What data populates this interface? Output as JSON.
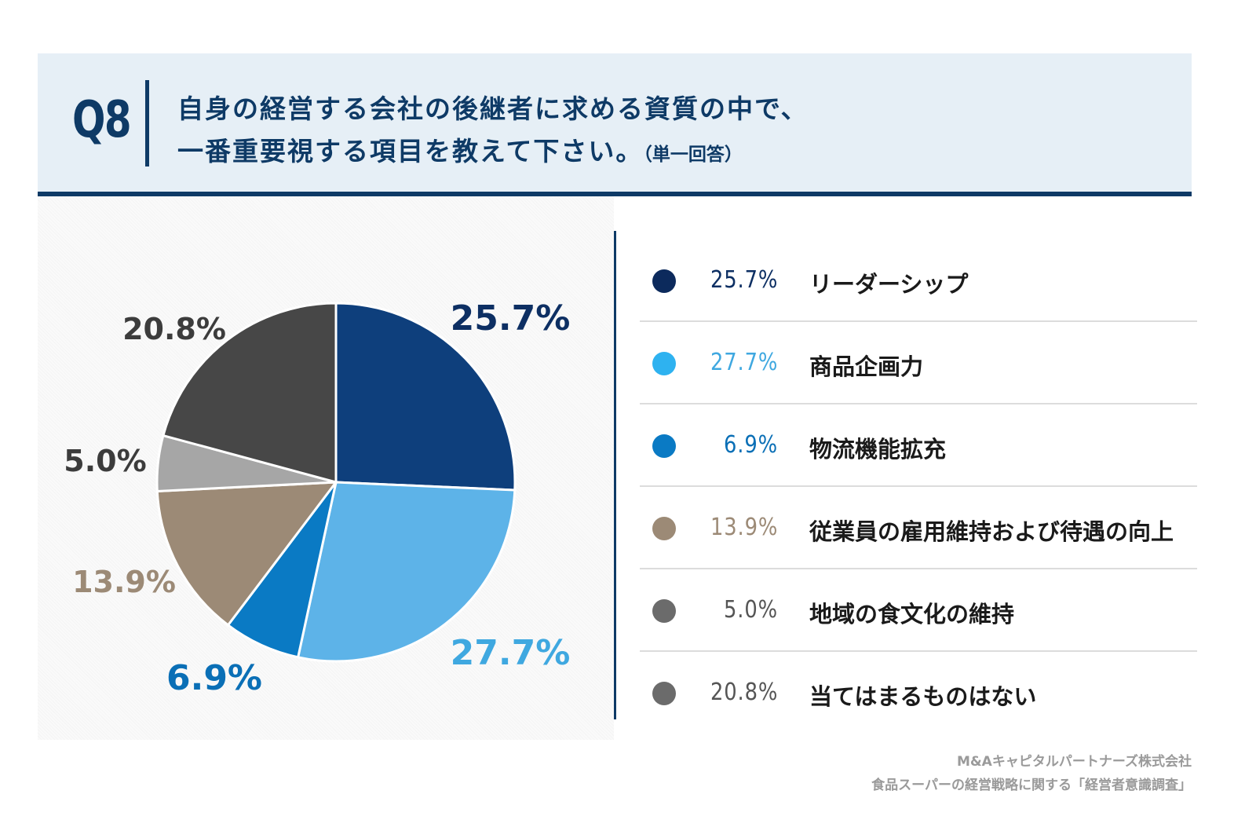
{
  "header": {
    "qno": "Q8",
    "title_line1": "自身の経営する会社の後継者に求める資質の中で、",
    "title_line2": "一番重要視する項目を教えて下さい。",
    "title_note": "（単一回答）"
  },
  "chart_data": {
    "type": "pie",
    "title": "",
    "start_angle_deg": 0,
    "direction": "clockwise",
    "slices": [
      {
        "label": "リーダーシップ",
        "value": 25.7,
        "display": "25.7%",
        "color": "#0e3f7c",
        "legend_dot": "#0c2a5c",
        "label_color": "#0d2f63"
      },
      {
        "label": "商品企画力",
        "value": 27.7,
        "display": "27.7%",
        "color": "#5db3e8",
        "legend_dot": "#2eb2f0",
        "label_color": "#3fa8e0"
      },
      {
        "label": "物流機能拡充",
        "value": 6.9,
        "display": "6.9%",
        "color": "#0a7ac4",
        "legend_dot": "#0a7ac4",
        "label_color": "#0a6fb6"
      },
      {
        "label": "従業員の雇用維持および待遇の向上",
        "value": 13.9,
        "display": "13.9%",
        "color": "#9c8a76",
        "legend_dot": "#9c8a76",
        "label_color": "#9c8a76"
      },
      {
        "label": "地域の食文化の維持",
        "value": 5.0,
        "display": "5.0%",
        "color": "#a6a6a6",
        "legend_dot": "#6b6b6b",
        "label_color": "#3c3c3c"
      },
      {
        "label": "当てはまるものはない",
        "value": 20.8,
        "display": "20.8%",
        "color": "#474747",
        "legend_dot": "#6b6b6b",
        "label_color": "#3c3c3c"
      }
    ],
    "legend_placement": "right"
  },
  "legend": {
    "items": [
      {
        "pct": "25.7%",
        "label": "リーダーシップ"
      },
      {
        "pct": "27.7%",
        "label": "商品企画力"
      },
      {
        "pct": "6.9%",
        "label": "物流機能拡充"
      },
      {
        "pct": "13.9%",
        "label": "従業員の雇用維持および待遇の向上"
      },
      {
        "pct": "5.0%",
        "label": "地域の食文化の維持"
      },
      {
        "pct": "20.8%",
        "label": "当てはまるものはない"
      }
    ]
  },
  "source": {
    "line1": "M&Aキャピタルパートナーズ株式会社",
    "line2": "食品スーパーの経営戦略に関する「経営者意識調査」"
  }
}
